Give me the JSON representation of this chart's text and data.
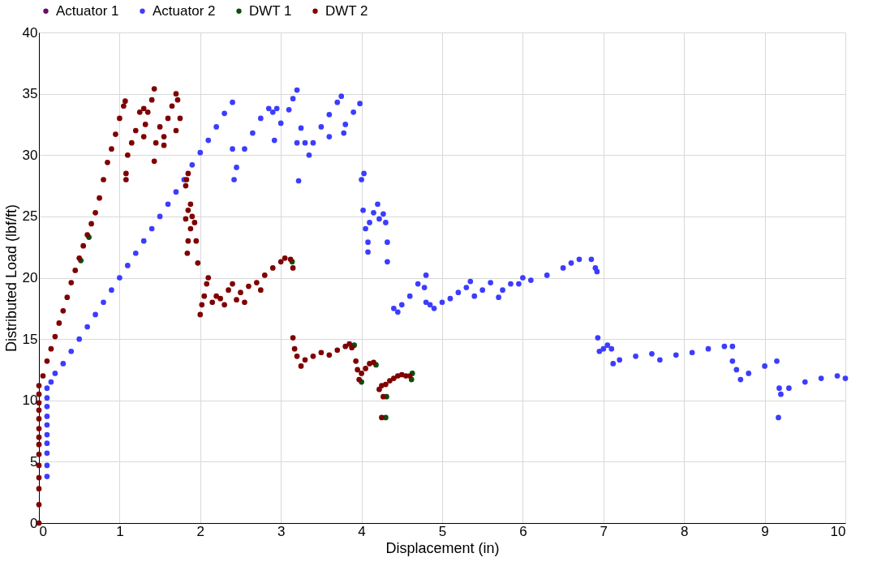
{
  "chart_data": {
    "type": "scatter",
    "xlabel": "Displacement (in)",
    "ylabel": "Distributed Load (lbf/ft)",
    "xlim": [
      0,
      10
    ],
    "xticks": [
      0,
      1,
      2,
      3,
      4,
      5,
      6,
      7,
      8,
      9,
      10
    ],
    "ylim": [
      0,
      40
    ],
    "yticks": [
      0,
      5,
      10,
      15,
      20,
      25,
      30,
      35,
      40
    ],
    "grid": true,
    "legend": "top",
    "marker": "circle",
    "series": [
      {
        "name": "Actuator 1",
        "color": "#6a0a6a"
      },
      {
        "name": "Actuator 2",
        "color": "#3c3cff",
        "x": [
          0.1,
          0.1,
          0.1,
          0.1,
          0.1,
          0.1,
          0.1,
          0.1,
          0.1,
          0.1,
          0.15,
          0.2,
          0.3,
          0.4,
          0.5,
          0.6,
          0.7,
          0.8,
          0.9,
          1.0,
          1.1,
          1.2,
          1.3,
          1.4,
          1.5,
          1.6,
          1.7,
          1.8,
          1.9,
          2.0,
          2.1,
          2.2,
          2.3,
          2.4,
          2.4,
          2.42,
          2.45,
          2.55,
          2.65,
          2.75,
          2.85,
          2.9,
          2.95,
          2.92,
          3.0,
          3.1,
          3.15,
          3.2,
          3.2,
          3.22,
          3.25,
          3.3,
          3.35,
          3.4,
          3.5,
          3.6,
          3.7,
          3.75,
          3.6,
          3.8,
          3.9,
          3.98,
          3.78,
          4.0,
          4.03,
          4.02,
          4.05,
          4.1,
          4.15,
          4.2,
          4.22,
          4.27,
          4.3,
          4.08,
          4.08,
          4.32,
          4.32,
          4.4,
          4.45,
          4.5,
          4.6,
          4.7,
          4.8,
          4.78,
          4.8,
          4.85,
          4.9,
          5.0,
          5.1,
          5.2,
          5.3,
          5.35,
          5.4,
          5.5,
          5.6,
          5.7,
          5.75,
          5.85,
          6.0,
          5.95,
          6.1,
          6.3,
          6.5,
          6.6,
          6.7,
          6.85,
          6.9,
          6.92,
          6.93,
          6.95,
          7.0,
          7.05,
          7.1,
          7.12,
          7.2,
          7.4,
          7.6,
          7.7,
          7.9,
          8.1,
          8.3,
          8.5,
          8.6,
          8.6,
          8.65,
          8.7,
          8.8,
          9.0,
          9.15,
          9.18,
          9.2,
          9.3,
          9.5,
          9.7,
          9.9,
          10.0,
          9.17
        ],
        "values": [
          3.8,
          4.7,
          5.7,
          6.5,
          7.2,
          8,
          8.7,
          9.5,
          10.2,
          11,
          11.5,
          12.2,
          13,
          14,
          15,
          16,
          17,
          18,
          19,
          20,
          21,
          22,
          23,
          24,
          25,
          26,
          27,
          28,
          29.2,
          30.2,
          31.2,
          32.3,
          33.4,
          34.3,
          30.5,
          28,
          29,
          30.5,
          31.8,
          33,
          33.8,
          33.5,
          33.8,
          31.2,
          32.6,
          33.7,
          34.6,
          35.3,
          31,
          27.9,
          32.2,
          31,
          30,
          31,
          32.3,
          33.3,
          34.3,
          34.8,
          31.5,
          32.5,
          33.5,
          34.2,
          31.8,
          28,
          28.5,
          25.5,
          24,
          24.5,
          25.3,
          26,
          24.8,
          25.2,
          24.5,
          22.9,
          22.1,
          22.9,
          21.3,
          17.5,
          17.2,
          17.8,
          18.5,
          19.5,
          20.2,
          19.2,
          18,
          17.8,
          17.5,
          18,
          18.3,
          18.8,
          19.2,
          19.7,
          18.5,
          19,
          19.6,
          18.4,
          19,
          19.5,
          20,
          19.5,
          19.8,
          20.2,
          20.8,
          21.2,
          21.5,
          21.5,
          20.8,
          20.5,
          15.1,
          14,
          14.2,
          14.5,
          14.2,
          13,
          13.3,
          13.6,
          13.8,
          13.3,
          13.7,
          13.9,
          14.2,
          14.4,
          14.4,
          13.2,
          12.5,
          11.7,
          12.2,
          12.8,
          13.2,
          11,
          10.5,
          11,
          11.5,
          11.8,
          12,
          11.8,
          8.6
        ]
      },
      {
        "name": "DWT 1",
        "color": "#0b4f0b",
        "x": [
          0.52,
          0.62,
          3.14,
          3.91,
          4.18,
          4.3,
          4.31,
          4.62,
          4.63,
          4.0
        ],
        "values": [
          21.4,
          23.3,
          21.3,
          14.5,
          12.9,
          8.6,
          10.3,
          11.7,
          12.2,
          11.5
        ]
      },
      {
        "name": "DWT 2",
        "color": "#7f0000",
        "x": [
          0,
          0,
          0,
          0,
          0,
          0,
          0,
          0,
          0,
          0,
          0,
          0,
          0,
          0,
          0.05,
          0.1,
          0.15,
          0.2,
          0.25,
          0.3,
          0.35,
          0.4,
          0.45,
          0.5,
          0.55,
          0.6,
          0.65,
          0.7,
          0.75,
          0.8,
          0.85,
          0.9,
          0.95,
          1.0,
          1.05,
          1.07,
          1.08,
          1.1,
          1.15,
          1.2,
          1.25,
          1.3,
          1.32,
          1.35,
          1.4,
          1.43,
          1.3,
          1.43,
          1.45,
          1.5,
          1.55,
          1.6,
          1.65,
          1.7,
          1.72,
          1.75,
          1.7,
          1.55,
          1.08,
          1.83,
          1.85,
          1.82,
          1.82,
          1.85,
          1.88,
          1.9,
          1.93,
          1.85,
          1.95,
          1.84,
          1.97,
          1.88,
          2.0,
          2.02,
          2.05,
          2.08,
          2.1,
          2.15,
          2.2,
          2.3,
          2.35,
          2.4,
          2.45,
          2.5,
          2.6,
          2.7,
          2.8,
          2.9,
          3.0,
          3.05,
          3.12,
          3.15,
          2.25,
          2.55,
          2.75,
          3.15,
          3.17,
          3.2,
          3.25,
          3.3,
          3.4,
          3.5,
          3.6,
          3.7,
          3.8,
          3.85,
          3.88,
          3.93,
          3.95,
          3.97,
          4.0,
          4.05,
          4.1,
          4.15,
          4.22,
          4.25,
          4.3,
          4.35,
          4.4,
          4.45,
          4.5,
          4.55,
          4.6,
          4.27,
          4.25
        ],
        "values": [
          0,
          1.5,
          2.8,
          3.7,
          4.7,
          5.6,
          6.4,
          7.0,
          7.7,
          8.5,
          9.2,
          9.8,
          10.5,
          11.2,
          12,
          13.2,
          14.2,
          15.2,
          16.3,
          17.3,
          18.4,
          19.6,
          20.6,
          21.6,
          22.6,
          23.5,
          24.4,
          25.3,
          26.5,
          28,
          29.4,
          30.5,
          31.7,
          33.0,
          34.0,
          34.4,
          28.5,
          30,
          31,
          32,
          33.5,
          33.8,
          32.5,
          33.5,
          34.5,
          35.4,
          31.5,
          29.5,
          31,
          32.3,
          31.5,
          33,
          34,
          35,
          34.5,
          33,
          32,
          30.8,
          28,
          28,
          28.5,
          27.5,
          24.8,
          25.5,
          26,
          25,
          24.5,
          23,
          23,
          22,
          21.2,
          24,
          17,
          17.8,
          18.5,
          19.5,
          20,
          18,
          18.5,
          17.8,
          19,
          19.5,
          18.2,
          18.8,
          19.3,
          19.6,
          20.2,
          20.8,
          21.3,
          21.6,
          21.5,
          20.8,
          18.3,
          18,
          19,
          15.1,
          14.2,
          13.6,
          12.8,
          13.3,
          13.6,
          13.9,
          13.7,
          14.1,
          14.4,
          14.6,
          14.3,
          13.2,
          12.5,
          11.7,
          12.2,
          12.6,
          13.0,
          13.1,
          10.9,
          11.2,
          11.3,
          11.6,
          11.8,
          12.0,
          12.1,
          12.0,
          12.0,
          10.3,
          8.6
        ]
      }
    ]
  }
}
